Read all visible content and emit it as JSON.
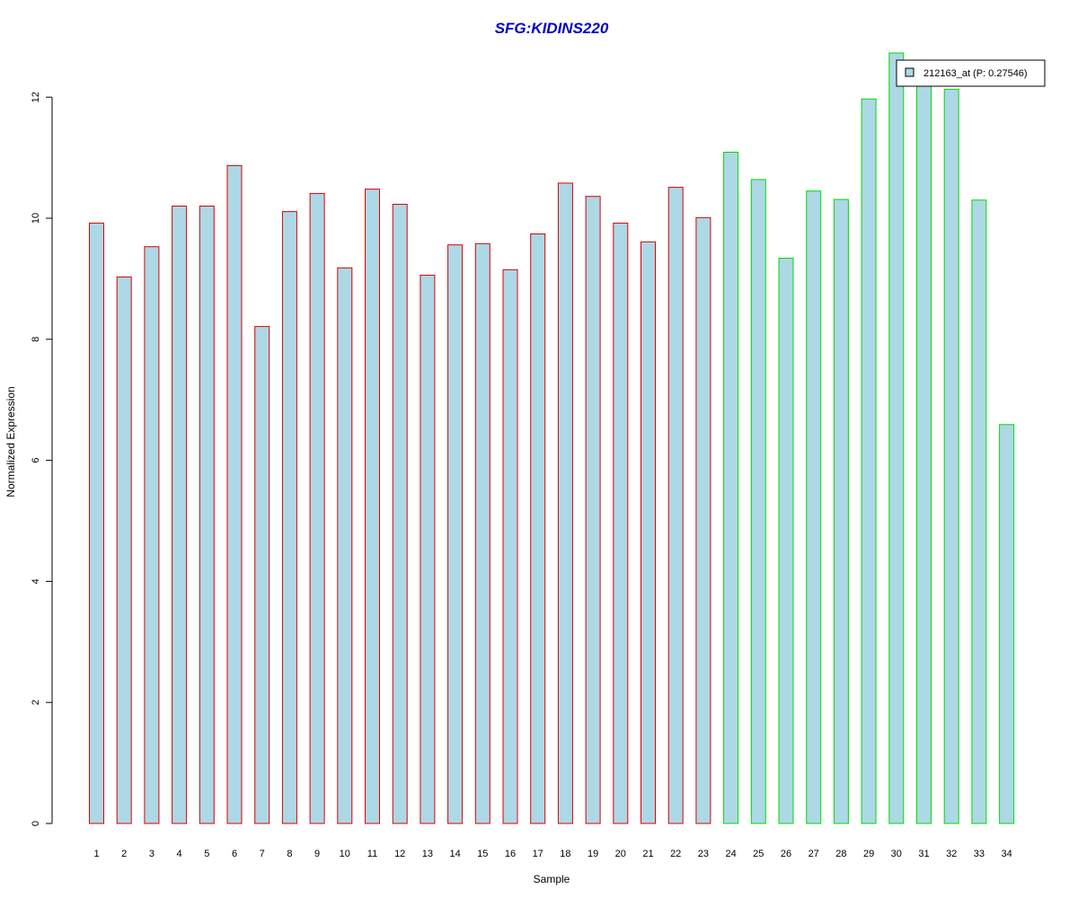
{
  "chart_data": {
    "type": "bar",
    "title": "SFG:KIDINS220",
    "xlabel": "Sample",
    "ylabel": "Normalized Expression",
    "categories": [
      "1",
      "2",
      "3",
      "4",
      "5",
      "6",
      "7",
      "8",
      "9",
      "10",
      "11",
      "12",
      "13",
      "14",
      "15",
      "16",
      "17",
      "18",
      "19",
      "20",
      "21",
      "22",
      "23",
      "24",
      "25",
      "26",
      "27",
      "28",
      "29",
      "30",
      "31",
      "32",
      "33",
      "34"
    ],
    "series": [
      {
        "name": "212163_at (P: 0.27546)",
        "values": [
          9.92,
          9.03,
          9.53,
          10.2,
          10.2,
          10.87,
          8.21,
          10.11,
          10.41,
          9.18,
          10.48,
          10.23,
          9.06,
          9.56,
          9.58,
          9.15,
          9.74,
          10.58,
          10.36,
          9.92,
          9.61,
          10.51,
          10.01,
          11.09,
          10.64,
          9.34,
          10.45,
          10.31,
          11.97,
          12.73,
          12.27,
          12.13,
          10.3,
          6.59
        ]
      }
    ],
    "groups": [
      {
        "samples": [
          1,
          23
        ],
        "border_color": "#dd0000"
      },
      {
        "samples": [
          24,
          34
        ],
        "border_color": "#00dd00"
      }
    ],
    "yticks": [
      0,
      2,
      4,
      6,
      8,
      10,
      12
    ],
    "ylim": [
      0,
      12.8
    ],
    "fill_color": "#add8e6",
    "title_color": "#0000cc",
    "legend_position": "top-right",
    "grid": false
  }
}
